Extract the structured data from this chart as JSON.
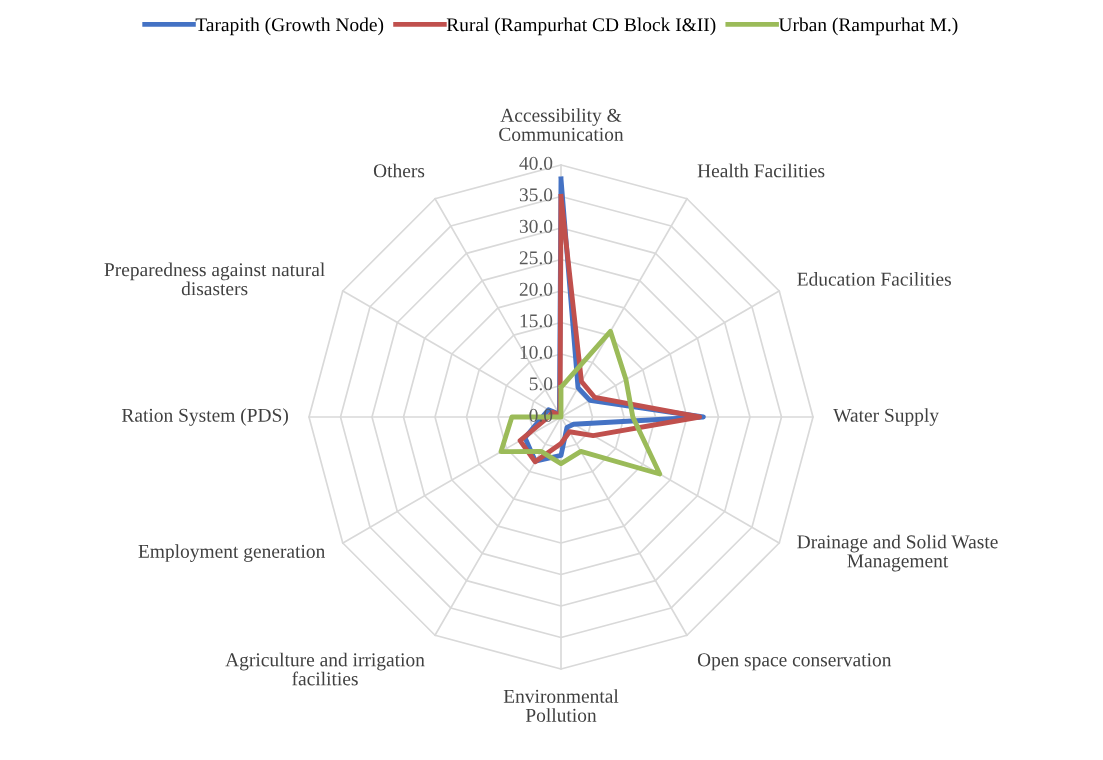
{
  "chart_data": {
    "type": "radar",
    "categories": [
      "Accessibility & Communication",
      "Health Facilities",
      "Education Facilities",
      "Water Supply",
      "Drainage and Solid Waste Management",
      "Open space conservation",
      "Environmental Pollution",
      "Agriculture and irrigation facilities",
      "Employment generation",
      "Ration System (PDS)",
      "Preparedness against natural disasters",
      "Others"
    ],
    "series": [
      {
        "name": "Tarapith (Growth Node)",
        "color": "#4472c4",
        "values": [
          37.8,
          5.4,
          5.3,
          22.6,
          2.3,
          1.9,
          6.1,
          8.1,
          6.6,
          3.0,
          2.3,
          0.5
        ]
      },
      {
        "name": "Rural (Rampurhat CD Block I&II)",
        "color": "#c0504d",
        "values": [
          35.0,
          6.5,
          6.2,
          22.0,
          5.9,
          2.7,
          4.2,
          8.2,
          7.5,
          2.0,
          1.5,
          0.3
        ]
      },
      {
        "name": "Urban (Rampurhat M.)",
        "color": "#9bbb59",
        "values": [
          4.7,
          15.7,
          11.9,
          11.4,
          18.1,
          6.3,
          7.4,
          6.3,
          11.0,
          7.8,
          0.0,
          0.0
        ]
      }
    ],
    "ylim": [
      0,
      40
    ],
    "yticks": [
      {
        "value": 0,
        "label": "0.0"
      },
      {
        "value": 5,
        "label": "5.0"
      },
      {
        "value": 10,
        "label": "10.0"
      },
      {
        "value": 15,
        "label": "15.0"
      },
      {
        "value": 20,
        "label": "20.0"
      },
      {
        "value": 25,
        "label": "25.0"
      },
      {
        "value": 30,
        "label": "30.0"
      },
      {
        "value": 35,
        "label": "35.0"
      },
      {
        "value": 40,
        "label": "40.0"
      }
    ],
    "grid": true,
    "legend": "top",
    "marker": "none",
    "line_style": "solid"
  }
}
